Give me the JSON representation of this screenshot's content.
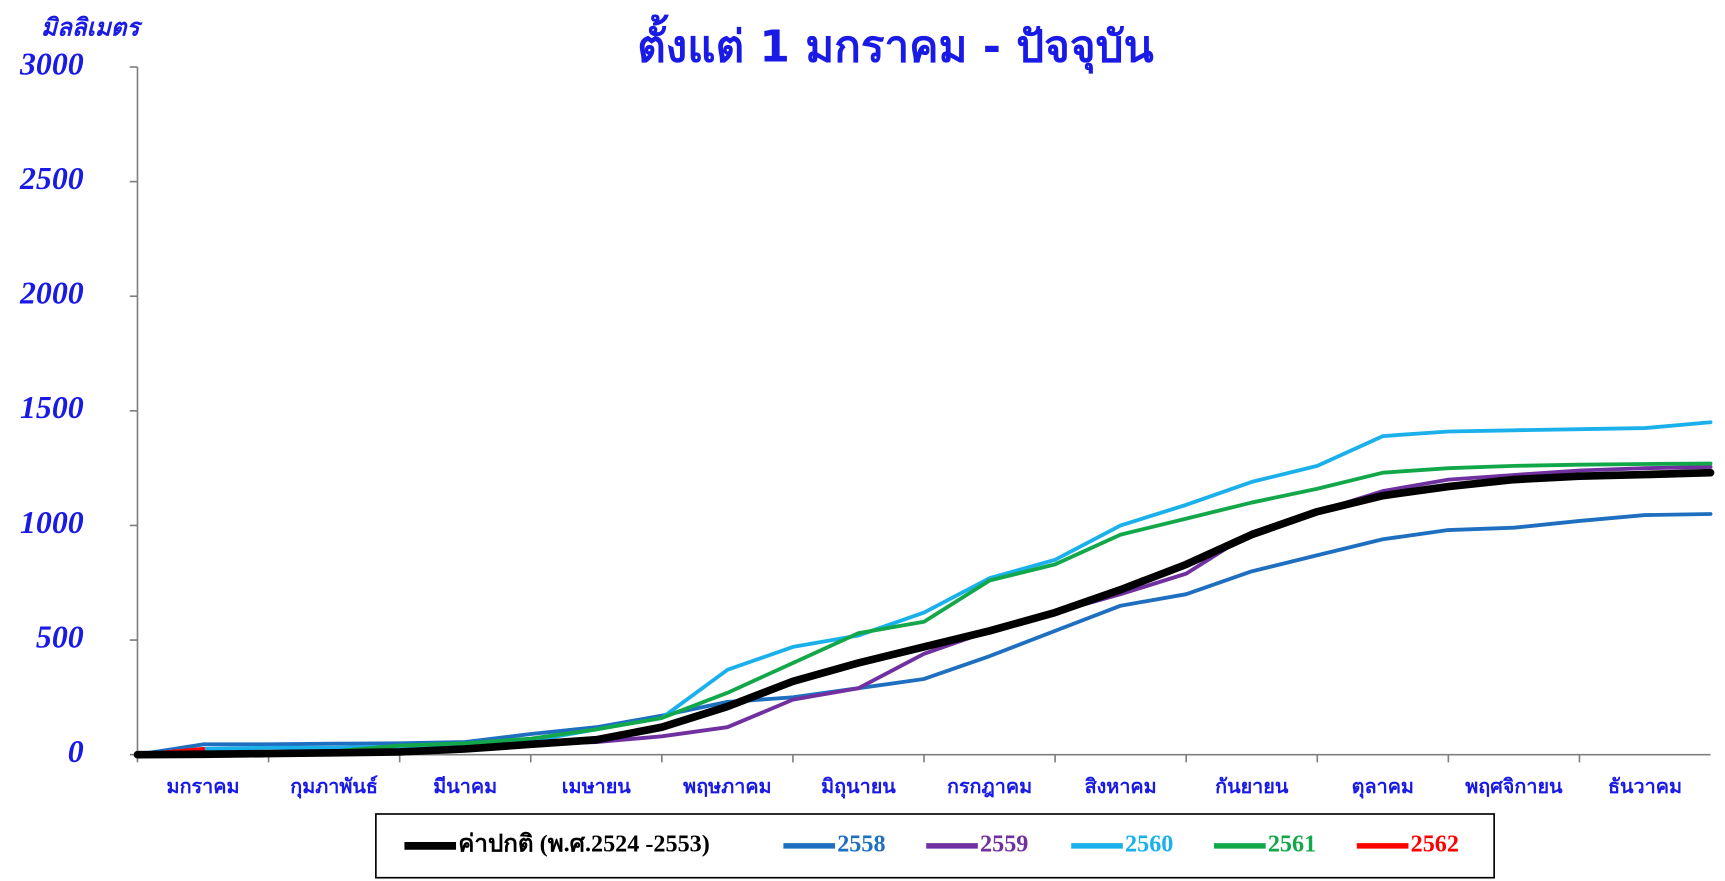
{
  "chart_data": {
    "type": "line",
    "title": "ตั้งแต่ 1 มกราคม - ปัจจุบัน",
    "y_label": "มิลลิเมตร",
    "categories": [
      "มกราคม",
      null,
      "กุมภาพันธ์",
      null,
      "มีนาคม",
      null,
      "เมษายน",
      null,
      "พฤษภาคม",
      null,
      "มิถุนายน",
      null,
      "กรกฎาคม",
      null,
      "สิงหาคม",
      null,
      "กันยายน",
      null,
      "ตุลาคม",
      null,
      "พฤศจิกายน",
      null,
      "ธันวาคม",
      null,
      null
    ],
    "ylim": [
      0,
      3000
    ],
    "yticks": [
      0,
      500,
      1000,
      1500,
      2000,
      2500,
      3000
    ],
    "grid": false,
    "legend": "bottom",
    "series": [
      {
        "name": "ค่าปกติ (พ.ศ.2524 -2553)",
        "color": "#000000",
        "values": [
          0,
          2,
          5,
          8,
          12,
          25,
          45,
          65,
          120,
          210,
          320,
          400,
          470,
          540,
          620,
          720,
          830,
          960,
          1060,
          1130,
          1170,
          1200,
          1215,
          1222,
          1230
        ]
      },
      {
        "name": "2558",
        "color": "#1f6fc0",
        "values": [
          0,
          45,
          45,
          48,
          50,
          55,
          90,
          120,
          170,
          230,
          250,
          290,
          330,
          430,
          540,
          650,
          700,
          800,
          870,
          940,
          980,
          990,
          1020,
          1045,
          1050
        ]
      },
      {
        "name": "2559",
        "color": "#7030a0",
        "values": [
          0,
          5,
          10,
          15,
          25,
          35,
          45,
          55,
          80,
          120,
          240,
          290,
          440,
          540,
          620,
          700,
          790,
          970,
          1060,
          1150,
          1200,
          1220,
          1240,
          1250,
          1255
        ]
      },
      {
        "name": "2560",
        "color": "#1ab0ec",
        "values": [
          0,
          25,
          30,
          30,
          35,
          45,
          60,
          110,
          160,
          370,
          470,
          520,
          620,
          770,
          850,
          1000,
          1090,
          1190,
          1260,
          1390,
          1410,
          1415,
          1420,
          1425,
          1450
        ]
      },
      {
        "name": "2561",
        "color": "#12a84a",
        "values": [
          0,
          5,
          10,
          15,
          40,
          50,
          70,
          110,
          160,
          270,
          400,
          530,
          580,
          760,
          830,
          960,
          1030,
          1100,
          1160,
          1230,
          1250,
          1260,
          1265,
          1268,
          1270
        ]
      },
      {
        "name": "2562",
        "color": "#ff0000",
        "values": [
          0,
          25,
          null,
          null,
          null,
          null,
          null,
          null,
          null,
          null,
          null,
          null,
          null,
          null,
          null,
          null,
          null,
          null,
          null,
          null,
          null,
          null,
          null,
          null,
          null
        ]
      }
    ]
  }
}
